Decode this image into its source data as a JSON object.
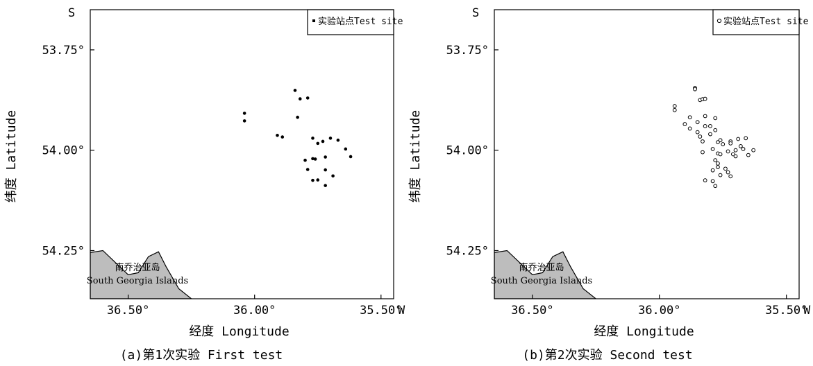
{
  "chart_data": [
    {
      "type": "scatter",
      "panel": "a",
      "caption": "(a)第1次实验 First test",
      "xlabel": "经度 Longitude",
      "ylabel": "纬度 Latitude",
      "x_hemisphere": "W",
      "y_hemisphere": "S",
      "xlim": [
        36.65,
        35.45
      ],
      "ylim": [
        54.37,
        53.65
      ],
      "xticks": [
        {
          "value": 36.5,
          "label": "36.50°"
        },
        {
          "value": 36.0,
          "label": "36.00°"
        },
        {
          "value": 35.5,
          "label": "35.50°"
        }
      ],
      "yticks": [
        {
          "value": 53.75,
          "label": "53.75°"
        },
        {
          "value": 54.0,
          "label": "54.00°"
        },
        {
          "value": 54.25,
          "label": "54.25°"
        }
      ],
      "legend": {
        "label": "实验站点Test site",
        "marker": "filled-square",
        "position": "top-right"
      },
      "island_label_cn": "南乔治亚岛",
      "island_label_en": "South Georgia Islands",
      "island_outline": [
        [
          36.65,
          54.255
        ],
        [
          36.6,
          54.25
        ],
        [
          36.55,
          54.28
        ],
        [
          36.5,
          54.31
        ],
        [
          36.46,
          54.305
        ],
        [
          36.42,
          54.265
        ],
        [
          36.38,
          54.253
        ],
        [
          36.35,
          54.29
        ],
        [
          36.3,
          54.345
        ],
        [
          36.25,
          54.37
        ],
        [
          36.65,
          54.37
        ]
      ],
      "series": [
        {
          "marker": "filled",
          "x": [
            35.84,
            35.82,
            35.79,
            36.04,
            36.04,
            35.83,
            35.91,
            35.89,
            35.7,
            35.73,
            35.77,
            35.75,
            35.67,
            35.64,
            35.62,
            35.72,
            35.77,
            35.76,
            35.8,
            35.79,
            35.72,
            35.69,
            35.75,
            35.77,
            35.72
          ],
          "y": [
            53.851,
            53.872,
            53.87,
            53.908,
            53.927,
            53.918,
            53.963,
            53.967,
            53.97,
            53.978,
            53.97,
            53.983,
            53.975,
            53.997,
            54.016,
            54.017,
            54.021,
            54.022,
            54.025,
            54.048,
            54.049,
            54.064,
            54.074,
            54.075,
            54.088
          ]
        }
      ]
    },
    {
      "type": "scatter",
      "panel": "b",
      "caption": "(b)第2次实验 Second test",
      "xlabel": "经度 Longitude",
      "ylabel": "纬度 Latitude",
      "x_hemisphere": "W",
      "y_hemisphere": "S",
      "xlim": [
        36.65,
        35.45
      ],
      "ylim": [
        54.37,
        53.65
      ],
      "xticks": [
        {
          "value": 36.5,
          "label": "36.50°"
        },
        {
          "value": 36.0,
          "label": "36.00°"
        },
        {
          "value": 35.5,
          "label": "35.50°"
        }
      ],
      "yticks": [
        {
          "value": 53.75,
          "label": "53.75°"
        },
        {
          "value": 54.0,
          "label": "54.00°"
        },
        {
          "value": 54.25,
          "label": "54.25°"
        }
      ],
      "legend": {
        "label": "实验站点Test site",
        "marker": "open-circle",
        "position": "top-right"
      },
      "island_label_cn": "南乔治亚岛",
      "island_label_en": "South Georgia Islands",
      "island_outline": [
        [
          36.65,
          54.255
        ],
        [
          36.6,
          54.25
        ],
        [
          36.55,
          54.28
        ],
        [
          36.5,
          54.31
        ],
        [
          36.46,
          54.305
        ],
        [
          36.42,
          54.265
        ],
        [
          36.38,
          54.253
        ],
        [
          36.35,
          54.29
        ],
        [
          36.3,
          54.345
        ],
        [
          36.25,
          54.37
        ],
        [
          36.65,
          54.37
        ]
      ],
      "series": [
        {
          "marker": "open",
          "x": [
            35.86,
            35.86,
            35.84,
            35.83,
            35.82,
            35.94,
            35.94,
            35.88,
            35.85,
            35.82,
            35.82,
            35.78,
            35.8,
            35.78,
            35.9,
            35.88,
            35.85,
            35.84,
            35.83,
            35.8,
            35.76,
            35.72,
            35.69,
            35.66,
            35.75,
            35.72,
            35.77,
            35.79,
            35.68,
            35.7,
            35.73,
            35.77,
            35.76,
            35.71,
            35.78,
            35.77,
            35.67,
            35.63,
            35.65,
            35.7,
            35.77,
            35.74,
            35.73,
            35.76,
            35.83,
            35.79,
            35.72,
            35.82,
            35.79,
            35.78
          ],
          "y": [
            53.845,
            53.848,
            53.875,
            53.873,
            53.872,
            53.89,
            53.9,
            53.918,
            53.93,
            53.915,
            53.94,
            53.92,
            53.94,
            53.95,
            53.935,
            53.946,
            53.955,
            53.966,
            53.978,
            53.96,
            53.975,
            53.978,
            53.972,
            53.97,
            53.985,
            53.983,
            53.98,
            53.997,
            53.99,
            54.0,
            54.003,
            54.008,
            54.01,
            54.01,
            54.025,
            54.033,
            53.997,
            54.0,
            54.012,
            54.015,
            54.042,
            54.046,
            54.055,
            54.062,
            54.005,
            54.05,
            54.065,
            54.075,
            54.077,
            54.089
          ]
        }
      ]
    }
  ]
}
